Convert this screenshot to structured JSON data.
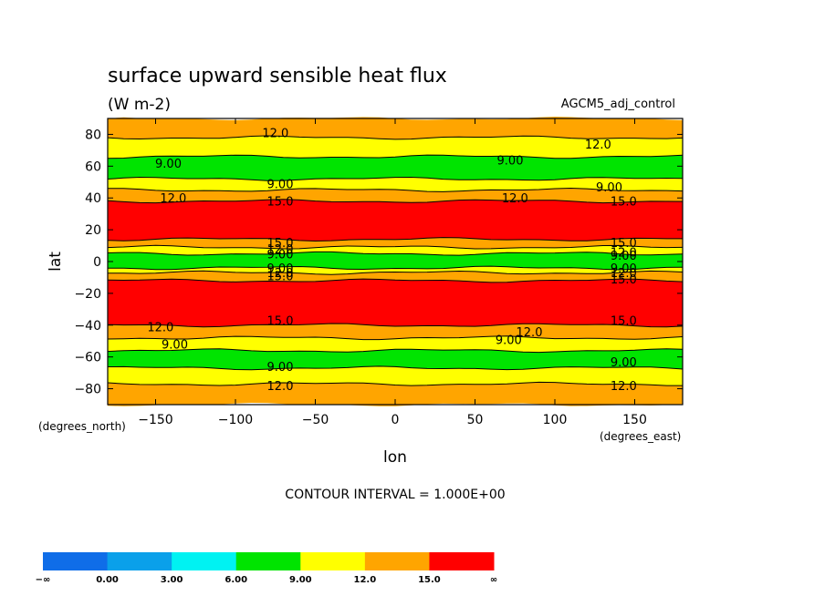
{
  "chart_data": {
    "type": "heatmap",
    "title": "surface upward sensible heat flux",
    "units": "(W m-2)",
    "dataset": "AGCM5_adj_control",
    "xlabel": "lon",
    "ylabel": "lat",
    "x_units": "(degrees_east)",
    "y_units": "(degrees_north)",
    "xlim": [
      -180,
      180
    ],
    "ylim": [
      -90,
      90
    ],
    "xticks": [
      -150,
      -100,
      -50,
      0,
      50,
      100,
      150
    ],
    "xtick_labels": [
      "−150",
      "−100",
      "−50",
      "0",
      "50",
      "100",
      "150"
    ],
    "yticks": [
      80,
      60,
      40,
      20,
      0,
      -20,
      -40,
      -60,
      -80
    ],
    "ytick_labels": [
      "80",
      "60",
      "40",
      "20",
      "0",
      "−20",
      "−40",
      "−60",
      "−80"
    ],
    "contour_interval_text": "CONTOUR INTERVAL = 1.000E+00",
    "levels": [
      0,
      3,
      6,
      9,
      12,
      15
    ],
    "colorbar": {
      "labels": [
        "−∞",
        "0.00",
        "3.00",
        "6.00",
        "9.00",
        "12.0",
        "15.0",
        "∞"
      ],
      "colors": [
        "#0f6de8",
        "#0aa0ea",
        "#00f2f2",
        "#00e400",
        "#ffff00",
        "#ffa500",
        "#ff0000"
      ]
    },
    "zonal_bands": [
      {
        "lat_from": 90,
        "lat_to": 78,
        "range": "12-15"
      },
      {
        "lat_from": 78,
        "lat_to": 66,
        "range": "9-12"
      },
      {
        "lat_from": 66,
        "lat_to": 52,
        "range": "6-9"
      },
      {
        "lat_from": 52,
        "lat_to": 45,
        "range": "9-12"
      },
      {
        "lat_from": 45,
        "lat_to": 38,
        "range": "12-15"
      },
      {
        "lat_from": 38,
        "lat_to": 14,
        "range": ">15"
      },
      {
        "lat_from": 14,
        "lat_to": 9,
        "range": "12-15"
      },
      {
        "lat_from": 9,
        "lat_to": 5,
        "range": "9-12"
      },
      {
        "lat_from": 5,
        "lat_to": -4,
        "range": "6-9"
      },
      {
        "lat_from": -4,
        "lat_to": -7,
        "range": "9-12"
      },
      {
        "lat_from": -7,
        "lat_to": -12,
        "range": "12-15"
      },
      {
        "lat_from": -12,
        "lat_to": -40,
        "range": ">15"
      },
      {
        "lat_from": -40,
        "lat_to": -48,
        "range": "12-15"
      },
      {
        "lat_from": -48,
        "lat_to": -56,
        "range": "9-12"
      },
      {
        "lat_from": -56,
        "lat_to": -67,
        "range": "6-9"
      },
      {
        "lat_from": -67,
        "lat_to": -77,
        "range": "9-12"
      },
      {
        "lat_from": -77,
        "lat_to": -90,
        "range": "12-15"
      }
    ],
    "contour_labels": [
      {
        "text": "12.0",
        "lon": -75,
        "lat": 81
      },
      {
        "text": "12.0",
        "lon": 127,
        "lat": 74
      },
      {
        "text": "9.00",
        "lon": -142,
        "lat": 62
      },
      {
        "text": "9.00",
        "lon": 72,
        "lat": 64
      },
      {
        "text": "9.00",
        "lon": -72,
        "lat": 49
      },
      {
        "text": "9.00",
        "lon": 134,
        "lat": 47
      },
      {
        "text": "12.0",
        "lon": -139,
        "lat": 40
      },
      {
        "text": "12.0",
        "lon": 75,
        "lat": 40
      },
      {
        "text": "15.0",
        "lon": -72,
        "lat": 38
      },
      {
        "text": "15.0",
        "lon": 143,
        "lat": 38
      },
      {
        "text": "15.0",
        "lon": -72,
        "lat": 12
      },
      {
        "text": "15.0",
        "lon": 143,
        "lat": 12
      },
      {
        "text": "12.0",
        "lon": -72,
        "lat": 8
      },
      {
        "text": "12.0",
        "lon": 143,
        "lat": 6
      },
      {
        "text": "9.00",
        "lon": -72,
        "lat": 5
      },
      {
        "text": "9.00",
        "lon": 143,
        "lat": 4
      },
      {
        "text": "9.00",
        "lon": -72,
        "lat": -4
      },
      {
        "text": "9.00",
        "lon": 143,
        "lat": -4
      },
      {
        "text": "12.0",
        "lon": -72,
        "lat": -7
      },
      {
        "text": "12.0",
        "lon": 143,
        "lat": -7
      },
      {
        "text": "15.0",
        "lon": -72,
        "lat": -9
      },
      {
        "text": "15.0",
        "lon": 143,
        "lat": -11
      },
      {
        "text": "15.0",
        "lon": -72,
        "lat": -37
      },
      {
        "text": "15.0",
        "lon": 143,
        "lat": -37
      },
      {
        "text": "12.0",
        "lon": -147,
        "lat": -41
      },
      {
        "text": "12.0",
        "lon": 84,
        "lat": -44
      },
      {
        "text": "9.00",
        "lon": -138,
        "lat": -52
      },
      {
        "text": "9.00",
        "lon": 71,
        "lat": -49
      },
      {
        "text": "9.00",
        "lon": -72,
        "lat": -66
      },
      {
        "text": "9.00",
        "lon": 143,
        "lat": -63
      },
      {
        "text": "12.0",
        "lon": -72,
        "lat": -78
      },
      {
        "text": "12.0",
        "lon": 143,
        "lat": -78
      }
    ]
  }
}
